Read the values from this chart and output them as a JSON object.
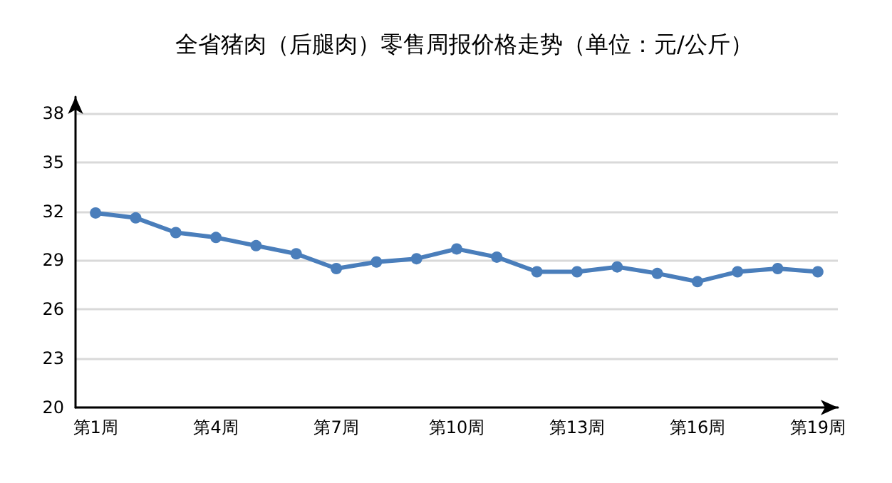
{
  "chart_data": {
    "type": "line",
    "title": "全省猪肉（后腿肉）零售周报价格走势（单位：元/公斤）",
    "categories": [
      "第1周",
      null,
      null,
      "第4周",
      null,
      null,
      "第7周",
      null,
      null,
      "第10周",
      null,
      null,
      "第13周",
      null,
      null,
      "第16周",
      null,
      null,
      "第19周"
    ],
    "series": [
      {
        "color": "#4a7ebb",
        "values": [
          31.9,
          31.6,
          30.7,
          30.4,
          29.9,
          29.4,
          28.5,
          28.9,
          29.1,
          29.7,
          29.2,
          28.3,
          28.3,
          28.6,
          28.2,
          27.7,
          28.3,
          28.5,
          28.3
        ]
      }
    ],
    "ylim": [
      20,
      39
    ],
    "yticks": [
      20,
      23,
      26,
      29,
      32,
      35,
      38
    ],
    "grid": "y",
    "marker": "circle",
    "line_style": "solid"
  }
}
